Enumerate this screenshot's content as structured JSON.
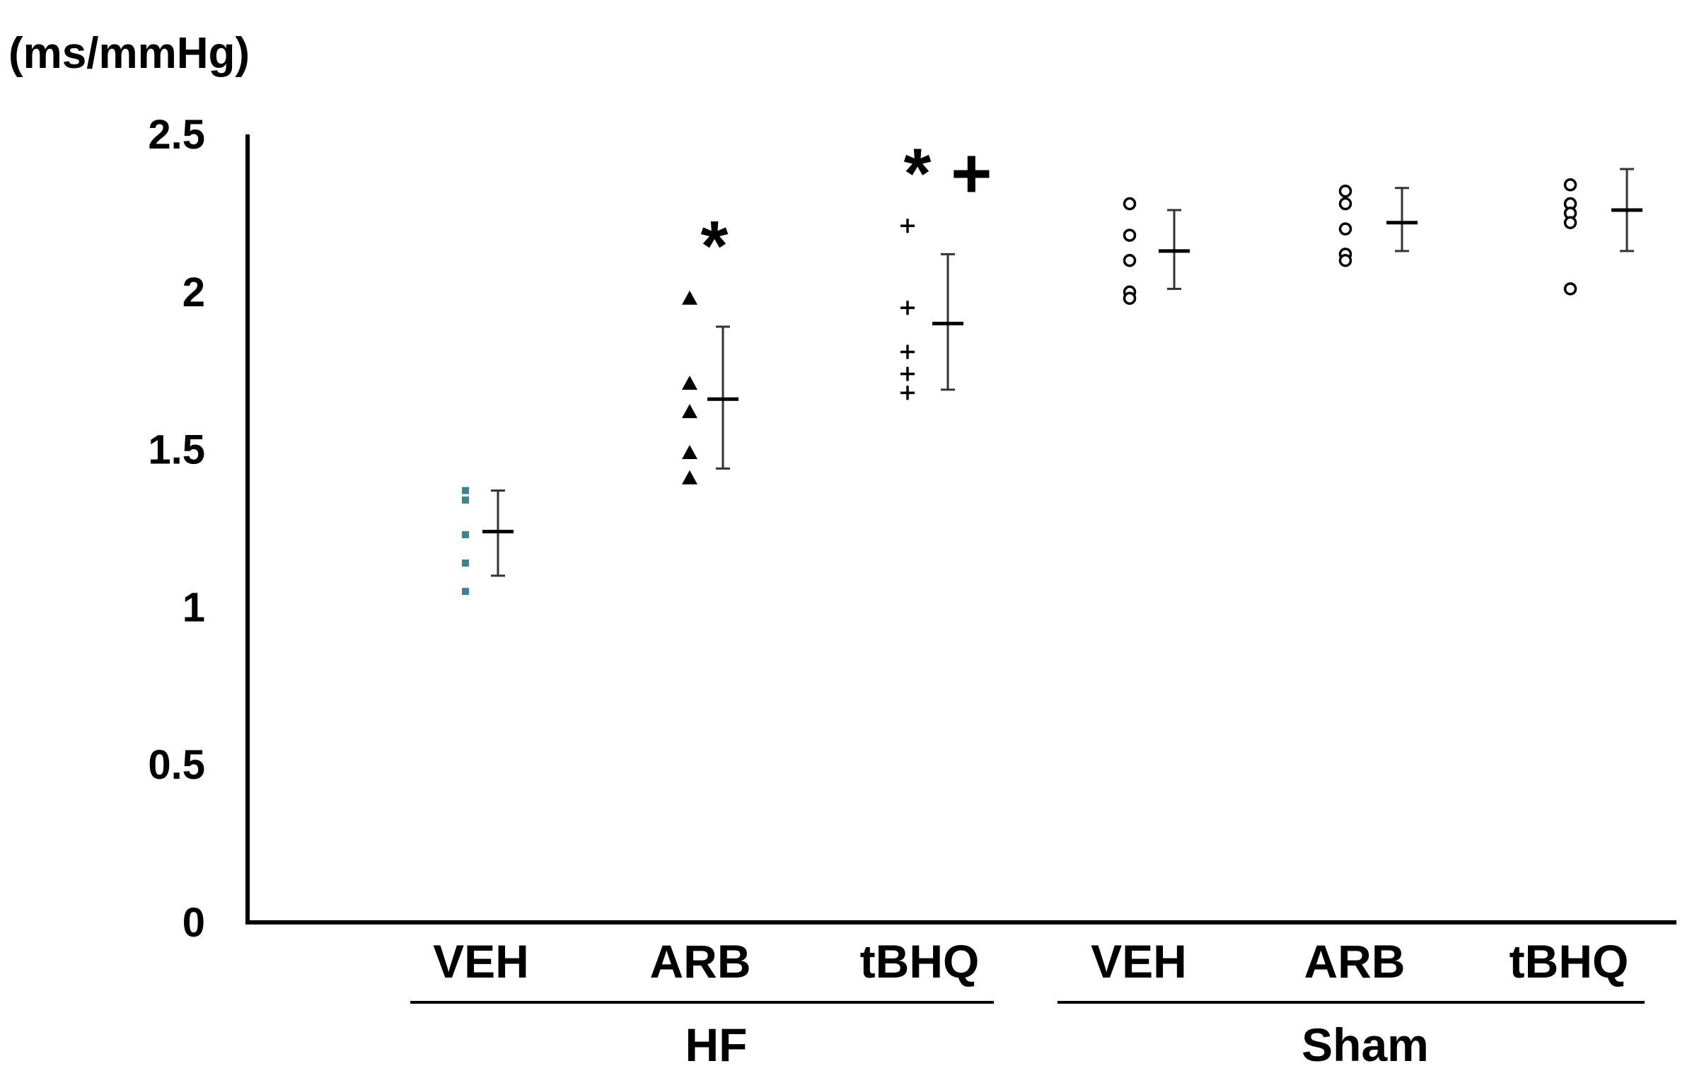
{
  "chart_data": {
    "type": "scatter",
    "title": "",
    "xlabel": "",
    "ylabel": "(ms/mmHg)",
    "ylim": [
      0,
      2.5
    ],
    "yticks": [
      "0",
      "0.5",
      "1",
      "1.5",
      "2",
      "2.5"
    ],
    "grid": false,
    "legend": "none",
    "groups": [
      {
        "label": "HF",
        "categories": [
          "VEH",
          "ARB",
          "tBHQ"
        ]
      },
      {
        "label": "Sham",
        "categories": [
          "VEH",
          "ARB",
          "tBHQ"
        ]
      }
    ],
    "series": [
      {
        "group": "HF",
        "category": "VEH",
        "marker": "square",
        "color": "#3b8494",
        "points": [
          1.37,
          1.34,
          1.23,
          1.14,
          1.05
        ],
        "mean": 1.24,
        "error": [
          1.1,
          1.37
        ],
        "significance": ""
      },
      {
        "group": "HF",
        "category": "ARB",
        "marker": "triangle",
        "color": "#000000",
        "points": [
          1.98,
          1.71,
          1.62,
          1.49,
          1.41
        ],
        "mean": 1.66,
        "error": [
          1.44,
          1.89
        ],
        "significance": "*"
      },
      {
        "group": "HF",
        "category": "tBHQ",
        "marker": "plus",
        "color": "#000000",
        "points": [
          2.21,
          1.95,
          1.81,
          1.74,
          1.68
        ],
        "mean": 1.9,
        "error": [
          1.69,
          2.12
        ],
        "significance": "* +"
      },
      {
        "group": "Sham",
        "category": "VEH",
        "marker": "circle",
        "color": "#000000",
        "points": [
          2.28,
          2.18,
          2.1,
          2.0,
          1.98
        ],
        "mean": 2.13,
        "error": [
          2.01,
          2.26
        ],
        "significance": ""
      },
      {
        "group": "Sham",
        "category": "ARB",
        "marker": "circle",
        "color": "#000000",
        "points": [
          2.32,
          2.28,
          2.2,
          2.12,
          2.1
        ],
        "mean": 2.22,
        "error": [
          2.13,
          2.33
        ],
        "significance": ""
      },
      {
        "group": "Sham",
        "category": "tBHQ",
        "marker": "circle",
        "color": "#000000",
        "points": [
          2.34,
          2.28,
          2.25,
          2.22,
          2.01
        ],
        "mean": 2.26,
        "error": [
          2.13,
          2.39
        ],
        "significance": ""
      }
    ]
  }
}
